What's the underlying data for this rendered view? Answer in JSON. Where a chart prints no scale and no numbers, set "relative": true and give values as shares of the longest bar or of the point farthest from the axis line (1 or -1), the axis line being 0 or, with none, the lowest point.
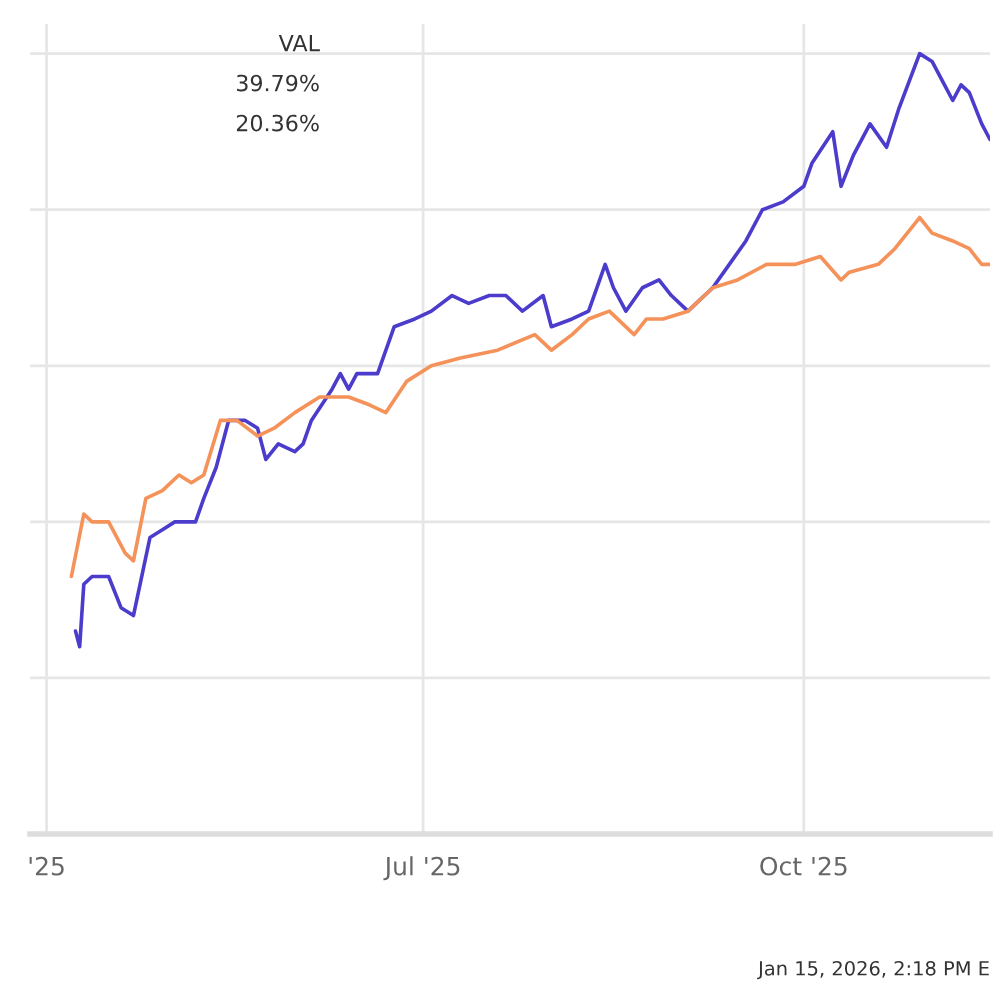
{
  "chart_data": {
    "type": "line",
    "relative": true,
    "grid": true,
    "legend": false,
    "xlim": [
      "2025-03-28",
      "2025-11-15"
    ],
    "xticks": [
      {
        "value": "2025-04-01",
        "label": "'25"
      },
      {
        "value": "2025-07-01",
        "label": "Jul '25"
      },
      {
        "value": "2025-10-01",
        "label": "Oct '25"
      }
    ],
    "annotations": [
      "VAL",
      "39.79%",
      "20.36%",
      "Jan 15, 2026, 2:18 PM E"
    ],
    "series": [
      {
        "color": "#4b3ccc",
        "x": [
          "2025-04-08",
          "2025-04-09",
          "2025-04-10",
          "2025-04-12",
          "2025-04-16",
          "2025-04-19",
          "2025-04-22",
          "2025-04-26",
          "2025-04-29",
          "2025-05-02",
          "2025-05-05",
          "2025-05-07",
          "2025-05-09",
          "2025-05-12",
          "2025-05-15",
          "2025-05-19",
          "2025-05-22",
          "2025-05-24",
          "2025-05-27",
          "2025-05-31",
          "2025-06-02",
          "2025-06-04",
          "2025-06-09",
          "2025-06-11",
          "2025-06-13",
          "2025-06-15",
          "2025-06-20",
          "2025-06-24",
          "2025-06-29",
          "2025-07-03",
          "2025-07-08",
          "2025-07-12",
          "2025-07-17",
          "2025-07-21",
          "2025-07-25",
          "2025-07-30",
          "2025-08-01",
          "2025-08-06",
          "2025-08-10",
          "2025-08-14",
          "2025-08-16",
          "2025-08-19",
          "2025-08-23",
          "2025-08-27",
          "2025-08-30",
          "2025-09-03",
          "2025-09-09",
          "2025-09-13",
          "2025-09-17",
          "2025-09-21",
          "2025-09-26",
          "2025-10-01",
          "2025-10-03",
          "2025-10-08",
          "2025-10-10",
          "2025-10-13",
          "2025-10-17",
          "2025-10-21",
          "2025-10-24",
          "2025-10-29",
          "2025-11-01",
          "2025-11-04",
          "2025-11-06",
          "2025-11-08",
          "2025-11-10",
          "2025-11-13",
          "2025-11-15"
        ],
        "values": [
          0.26,
          0.24,
          0.32,
          0.33,
          0.33,
          0.29,
          0.28,
          0.38,
          0.39,
          0.4,
          0.4,
          0.4,
          0.43,
          0.47,
          0.53,
          0.53,
          0.52,
          0.48,
          0.5,
          0.49,
          0.5,
          0.53,
          0.57,
          0.59,
          0.57,
          0.59,
          0.59,
          0.65,
          0.66,
          0.67,
          0.69,
          0.68,
          0.69,
          0.69,
          0.67,
          0.69,
          0.65,
          0.66,
          0.67,
          0.73,
          0.7,
          0.67,
          0.7,
          0.71,
          0.69,
          0.67,
          0.7,
          0.73,
          0.76,
          0.8,
          0.81,
          0.83,
          0.86,
          0.9,
          0.83,
          0.87,
          0.91,
          0.88,
          0.93,
          1.0,
          0.99,
          0.96,
          0.94,
          0.96,
          0.95,
          0.91,
          0.89
        ]
      },
      {
        "color": "#f5925a",
        "x": [
          "2025-04-07",
          "2025-04-10",
          "2025-04-12",
          "2025-04-16",
          "2025-04-20",
          "2025-04-22",
          "2025-04-25",
          "2025-04-29",
          "2025-05-03",
          "2025-05-06",
          "2025-05-09",
          "2025-05-13",
          "2025-05-17",
          "2025-05-22",
          "2025-05-26",
          "2025-05-31",
          "2025-06-06",
          "2025-06-13",
          "2025-06-18",
          "2025-06-22",
          "2025-06-27",
          "2025-07-03",
          "2025-07-10",
          "2025-07-19",
          "2025-07-28",
          "2025-08-01",
          "2025-08-06",
          "2025-08-10",
          "2025-08-15",
          "2025-08-21",
          "2025-08-24",
          "2025-08-28",
          "2025-09-03",
          "2025-09-09",
          "2025-09-15",
          "2025-09-22",
          "2025-09-29",
          "2025-10-05",
          "2025-10-10",
          "2025-10-12",
          "2025-10-19",
          "2025-10-23",
          "2025-10-29",
          "2025-11-01",
          "2025-11-06",
          "2025-11-10",
          "2025-11-13",
          "2025-11-15"
        ],
        "values": [
          0.33,
          0.41,
          0.4,
          0.4,
          0.36,
          0.35,
          0.43,
          0.44,
          0.46,
          0.45,
          0.46,
          0.53,
          0.53,
          0.51,
          0.52,
          0.54,
          0.56,
          0.56,
          0.55,
          0.54,
          0.58,
          0.6,
          0.61,
          0.62,
          0.64,
          0.62,
          0.64,
          0.66,
          0.67,
          0.64,
          0.66,
          0.66,
          0.67,
          0.7,
          0.71,
          0.73,
          0.73,
          0.74,
          0.71,
          0.72,
          0.73,
          0.75,
          0.79,
          0.77,
          0.76,
          0.75,
          0.73,
          0.73
        ]
      }
    ]
  }
}
